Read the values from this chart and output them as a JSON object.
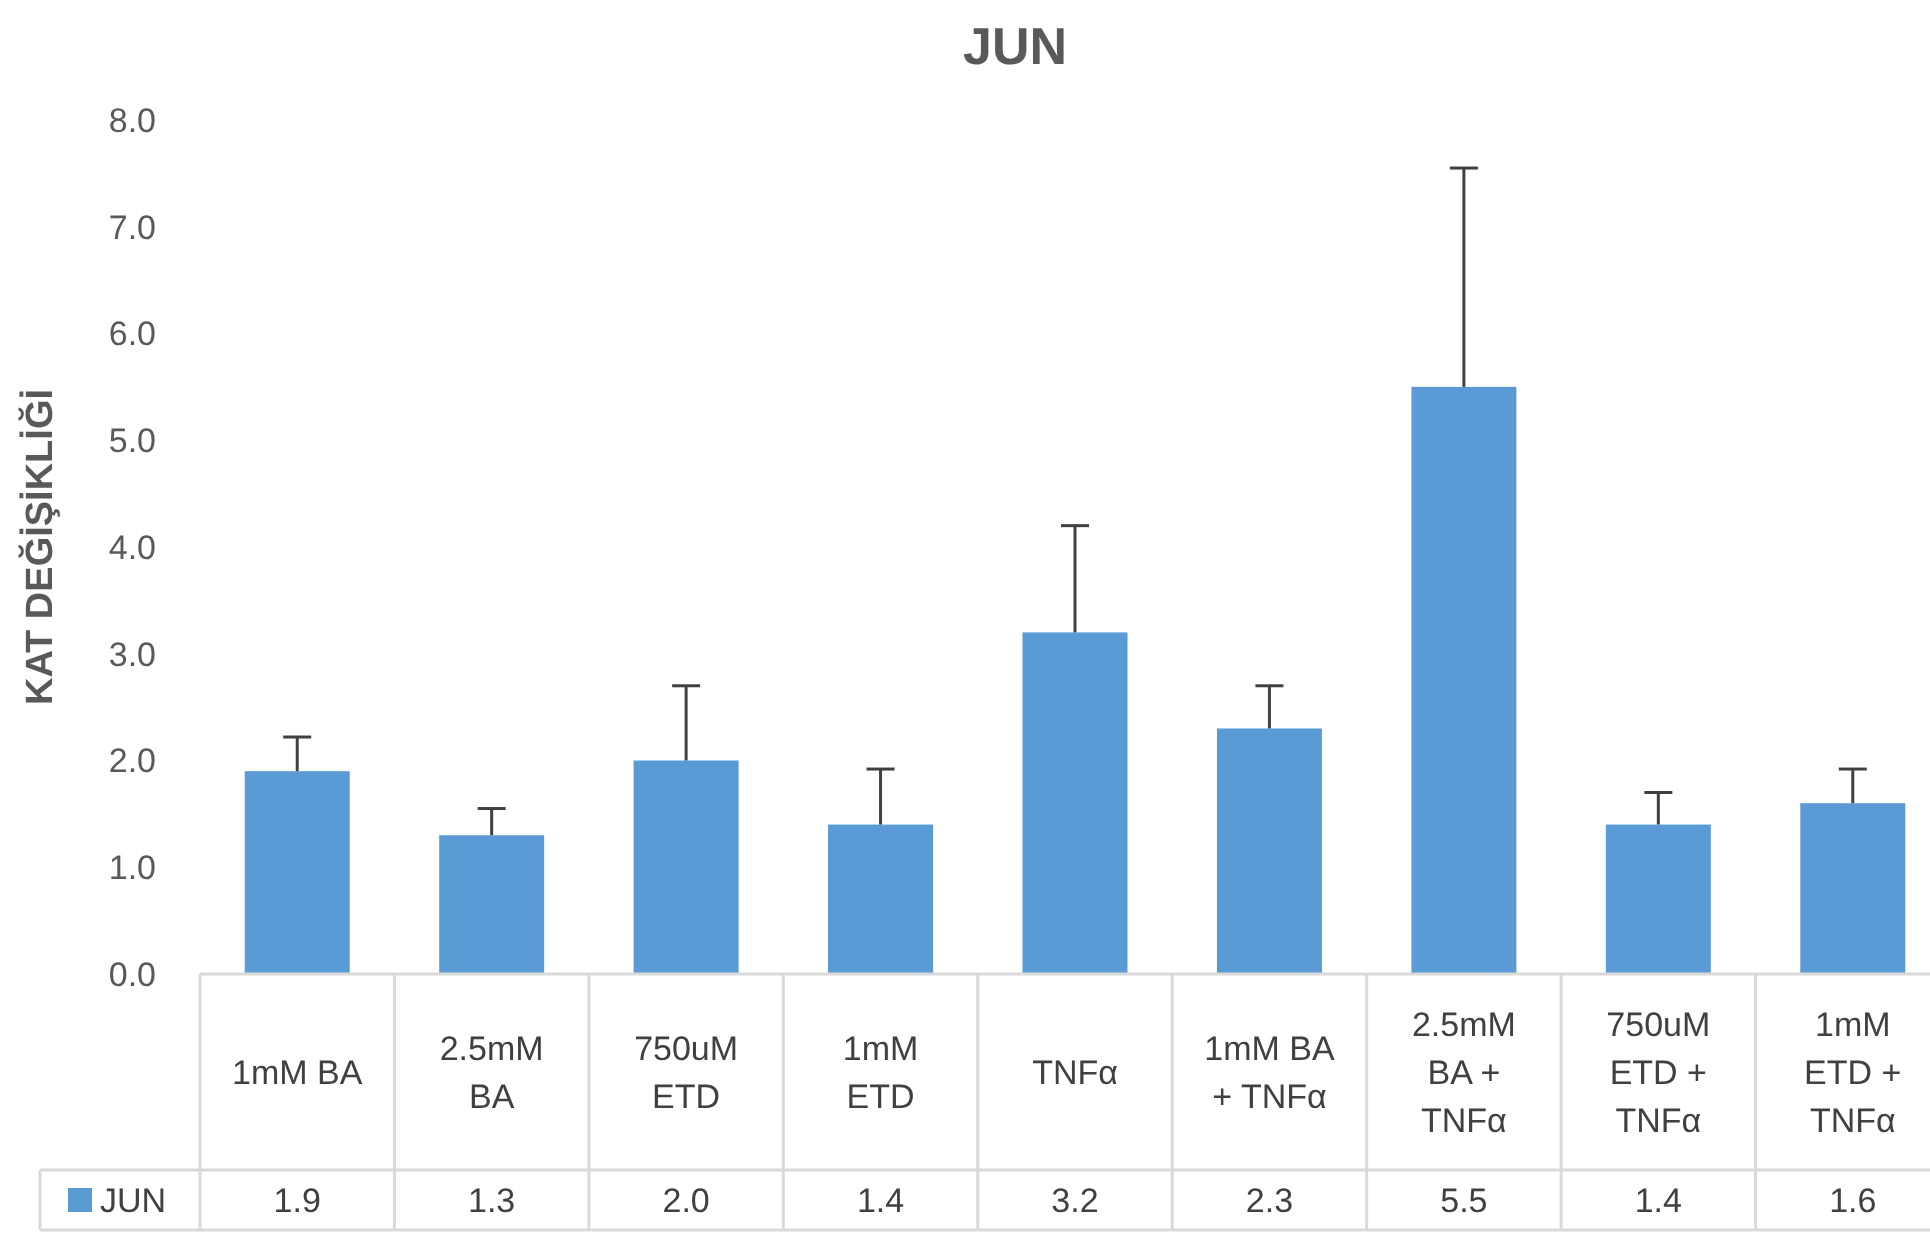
{
  "chart_data": {
    "type": "bar",
    "title": "JUN",
    "ylabel": "KAT DEĞİŞİKLİĞİ",
    "categories": [
      "1mM BA",
      "2.5mM BA",
      "750uM ETD",
      "1mM ETD",
      "TNFα",
      "1mM BA + TNFα",
      "2.5mM BA + TNFα",
      "750uM ETD + TNFα",
      "1mM ETD + TNFα"
    ],
    "series": [
      {
        "name": "JUN",
        "color": "#5b9bd5",
        "values": [
          1.9,
          1.3,
          2.0,
          1.4,
          3.2,
          2.3,
          5.5,
          1.4,
          1.6
        ],
        "value_labels": [
          "1.9",
          "1.3",
          "2.0",
          "1.4",
          "3.2",
          "2.3",
          "5.5",
          "1.4",
          "1.6"
        ],
        "errors": [
          [
            1.9,
            2.22
          ],
          [
            1.3,
            1.55
          ],
          [
            2.0,
            2.7
          ],
          [
            1.4,
            1.92
          ],
          [
            3.2,
            4.2
          ],
          [
            2.3,
            2.7
          ],
          [
            5.5,
            7.55
          ],
          [
            1.4,
            1.7
          ],
          [
            1.6,
            1.92
          ]
        ]
      }
    ],
    "ylim": [
      0,
      8
    ],
    "yticks": [
      {
        "value": 0,
        "label": "0.0"
      },
      {
        "value": 1,
        "label": "1.0"
      },
      {
        "value": 2,
        "label": "2.0"
      },
      {
        "value": 3,
        "label": "3.0"
      },
      {
        "value": 4,
        "label": "4.0"
      },
      {
        "value": 5,
        "label": "5.0"
      },
      {
        "value": 6,
        "label": "6.0"
      },
      {
        "value": 7,
        "label": "7.0"
      },
      {
        "value": 8,
        "label": "8.0"
      }
    ],
    "grid": false,
    "legend": "bottom"
  }
}
